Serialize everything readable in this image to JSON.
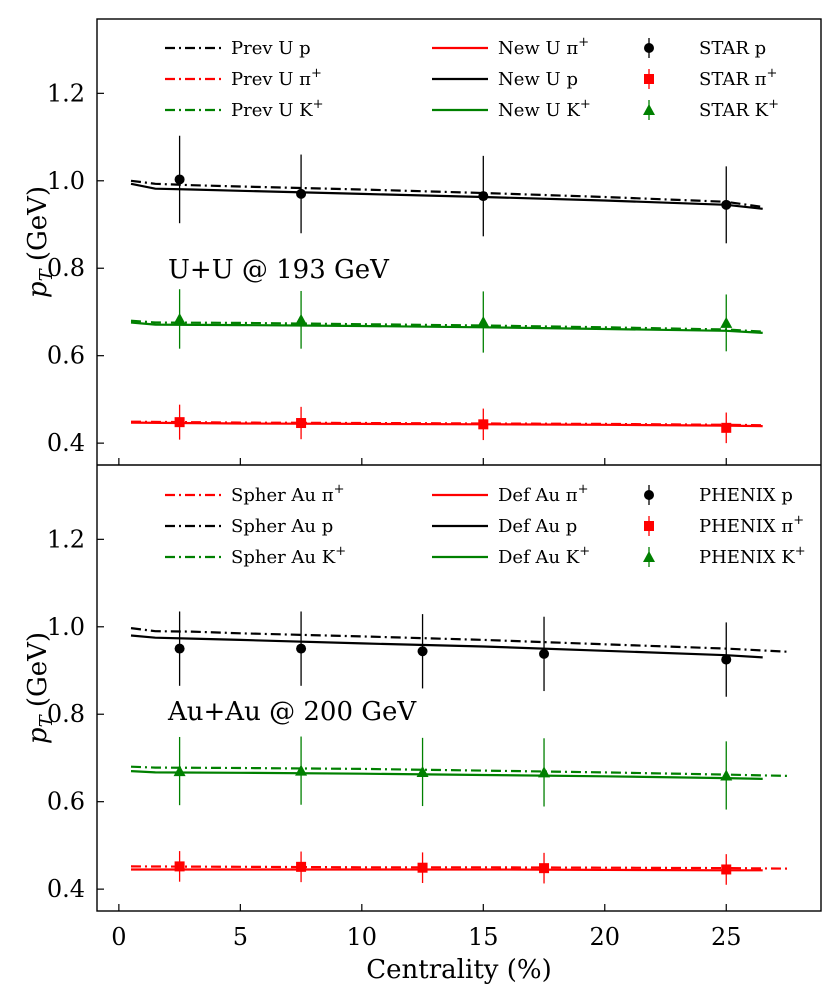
{
  "chart_data": [
    {
      "type": "line",
      "panel": "top",
      "title": "",
      "xlabel": "",
      "ylabel": "p_T (GeV)",
      "ylabel_main": "p",
      "ylabel_sub": "T",
      "ylabel_rest": " (GeV)",
      "annotation": "U+U @ 193 GeV",
      "xlim": [
        -0.9,
        28.9
      ],
      "ylim": [
        0.35,
        1.37
      ],
      "yticks": [
        "0.4",
        "0.6",
        "0.8",
        "1.0",
        "1.2"
      ],
      "ytick_values": [
        0.4,
        0.6,
        0.8,
        1.0,
        1.2
      ],
      "legend_position": "top",
      "series": [
        {
          "name": "Prev U p",
          "base": "Prev U ",
          "sup": "",
          "label_tail": "p",
          "style": "dashdot",
          "color": "#000000",
          "x": [
            0.5,
            1.5,
            3,
            5,
            10,
            15,
            20,
            25,
            26.5
          ],
          "y": [
            1.0,
            0.993,
            0.99,
            0.987,
            0.98,
            0.972,
            0.963,
            0.952,
            0.94
          ]
        },
        {
          "name": "Prev U π+",
          "base": "Prev U π",
          "sup": "+",
          "label_tail": "",
          "style": "dashdot",
          "color": "#ff0000",
          "x": [
            0.5,
            5,
            10,
            15,
            20,
            25,
            26.5
          ],
          "y": [
            0.449,
            0.447,
            0.446,
            0.445,
            0.444,
            0.442,
            0.441
          ]
        },
        {
          "name": "Prev U K+",
          "base": "Prev U K",
          "sup": "+",
          "label_tail": "",
          "style": "dashdot",
          "color": "#008000",
          "x": [
            0.5,
            1.5,
            5,
            10,
            15,
            20,
            25,
            26.5
          ],
          "y": [
            0.68,
            0.676,
            0.675,
            0.672,
            0.669,
            0.665,
            0.66,
            0.655
          ]
        },
        {
          "name": "New U π+",
          "base": "New U π",
          "sup": "+",
          "label_tail": "",
          "style": "solid",
          "color": "#ff0000",
          "x": [
            0.5,
            5,
            10,
            15,
            20,
            25,
            26.5
          ],
          "y": [
            0.447,
            0.445,
            0.444,
            0.443,
            0.442,
            0.44,
            0.439
          ]
        },
        {
          "name": "New U p",
          "base": "New U ",
          "sup": "",
          "label_tail": "p",
          "style": "solid",
          "color": "#000000",
          "x": [
            0.5,
            1.5,
            3,
            5,
            10,
            15,
            20,
            25,
            26.5
          ],
          "y": [
            0.993,
            0.982,
            0.98,
            0.977,
            0.97,
            0.963,
            0.955,
            0.945,
            0.936
          ]
        },
        {
          "name": "New U K+",
          "base": "New U K",
          "sup": "+",
          "label_tail": "",
          "style": "solid",
          "color": "#008000",
          "x": [
            0.5,
            1.5,
            5,
            10,
            15,
            20,
            25,
            26.5
          ],
          "y": [
            0.676,
            0.671,
            0.67,
            0.668,
            0.665,
            0.661,
            0.657,
            0.652
          ]
        },
        {
          "name": "STAR p",
          "base": "STAR ",
          "sup": "",
          "label_tail": "p",
          "style": "marker",
          "marker": "circle",
          "color": "#000000",
          "x": [
            2.5,
            7.5,
            15,
            25
          ],
          "y": [
            1.003,
            0.97,
            0.965,
            0.945
          ],
          "yerr": [
            0.1,
            0.09,
            0.092,
            0.088
          ]
        },
        {
          "name": "STAR π+",
          "base": "STAR π",
          "sup": "+",
          "label_tail": "",
          "style": "marker",
          "marker": "square",
          "color": "#ff0000",
          "x": [
            2.5,
            7.5,
            15,
            25
          ],
          "y": [
            0.448,
            0.446,
            0.443,
            0.435
          ],
          "yerr": [
            0.04,
            0.037,
            0.036,
            0.035
          ]
        },
        {
          "name": "STAR K+",
          "base": "STAR K",
          "sup": "+",
          "label_tail": "",
          "style": "marker",
          "marker": "triangle",
          "color": "#008000",
          "x": [
            2.5,
            7.5,
            15,
            25
          ],
          "y": [
            0.684,
            0.682,
            0.677,
            0.675
          ],
          "yerr": [
            0.068,
            0.066,
            0.07,
            0.065
          ]
        }
      ]
    },
    {
      "type": "line",
      "panel": "bottom",
      "title": "",
      "xlabel": "Centrality (%)",
      "ylabel": "p_T (GeV)",
      "ylabel_main": "p",
      "ylabel_sub": "T",
      "ylabel_rest": " (GeV)",
      "annotation": "Au+Au @ 200 GeV",
      "xlim": [
        -0.9,
        28.9
      ],
      "ylim": [
        0.35,
        1.37
      ],
      "xticks": [
        "0",
        "5",
        "10",
        "15",
        "20",
        "25"
      ],
      "xtick_values": [
        0,
        5,
        10,
        15,
        20,
        25
      ],
      "yticks": [
        "0.4",
        "0.6",
        "0.8",
        "1.0",
        "1.2"
      ],
      "ytick_values": [
        0.4,
        0.6,
        0.8,
        1.0,
        1.2
      ],
      "legend_position": "top",
      "series": [
        {
          "name": "Spher Au π+",
          "base": "Spher Au π",
          "sup": "+",
          "label_tail": "",
          "style": "dashdot",
          "color": "#ff0000",
          "x": [
            0.5,
            5,
            10,
            15,
            20,
            25,
            27.5
          ],
          "y": [
            0.452,
            0.451,
            0.45,
            0.45,
            0.449,
            0.448,
            0.447
          ]
        },
        {
          "name": "Spher Au p",
          "base": "Spher Au ",
          "sup": "",
          "label_tail": "p",
          "style": "dashdot",
          "color": "#000000",
          "x": [
            0.5,
            1.5,
            3,
            5,
            10,
            15,
            20,
            25,
            27.5
          ],
          "y": [
            0.997,
            0.99,
            0.989,
            0.985,
            0.978,
            0.97,
            0.96,
            0.95,
            0.943
          ]
        },
        {
          "name": "Spher Au K+",
          "base": "Spher Au K",
          "sup": "+",
          "label_tail": "",
          "style": "dashdot",
          "color": "#008000",
          "x": [
            0.5,
            1.5,
            5,
            10,
            15,
            20,
            25,
            27.5
          ],
          "y": [
            0.68,
            0.678,
            0.677,
            0.675,
            0.671,
            0.667,
            0.662,
            0.659
          ]
        },
        {
          "name": "Def Au π+",
          "base": "Def Au π",
          "sup": "+",
          "label_tail": "",
          "style": "solid",
          "color": "#ff0000",
          "x": [
            0.5,
            5,
            10,
            15,
            20,
            25,
            26.5
          ],
          "y": [
            0.445,
            0.445,
            0.445,
            0.445,
            0.444,
            0.443,
            0.443
          ]
        },
        {
          "name": "Def Au p",
          "base": "Def Au ",
          "sup": "",
          "label_tail": "p",
          "style": "solid",
          "color": "#000000",
          "x": [
            0.5,
            1.5,
            3,
            5,
            10,
            15,
            20,
            25,
            26.5
          ],
          "y": [
            0.98,
            0.975,
            0.973,
            0.97,
            0.962,
            0.955,
            0.945,
            0.935,
            0.93
          ]
        },
        {
          "name": "Def Au K+",
          "base": "Def Au K",
          "sup": "+",
          "label_tail": "",
          "style": "solid",
          "color": "#008000",
          "x": [
            0.5,
            1.5,
            5,
            10,
            15,
            20,
            25,
            26.5
          ],
          "y": [
            0.67,
            0.667,
            0.666,
            0.664,
            0.661,
            0.658,
            0.654,
            0.652
          ]
        },
        {
          "name": "PHENIX p",
          "base": "PHENIX ",
          "sup": "",
          "label_tail": "p",
          "style": "marker",
          "marker": "circle",
          "color": "#000000",
          "x": [
            2.5,
            7.5,
            12.5,
            17.5,
            25
          ],
          "y": [
            0.95,
            0.95,
            0.944,
            0.938,
            0.925
          ],
          "yerr": [
            0.085,
            0.085,
            0.085,
            0.085,
            0.085
          ]
        },
        {
          "name": "PHENIX π+",
          "base": "PHENIX π",
          "sup": "+",
          "label_tail": "",
          "style": "marker",
          "marker": "square",
          "color": "#ff0000",
          "x": [
            2.5,
            7.5,
            12.5,
            17.5,
            25
          ],
          "y": [
            0.452,
            0.451,
            0.449,
            0.448,
            0.445
          ],
          "yerr": [
            0.035,
            0.035,
            0.035,
            0.035,
            0.035
          ]
        },
        {
          "name": "PHENIX K+",
          "base": "PHENIX K",
          "sup": "+",
          "label_tail": "",
          "style": "marker",
          "marker": "triangle",
          "color": "#008000",
          "x": [
            2.5,
            7.5,
            12.5,
            17.5,
            25
          ],
          "y": [
            0.67,
            0.671,
            0.668,
            0.667,
            0.66
          ],
          "yerr": [
            0.078,
            0.078,
            0.078,
            0.078,
            0.078
          ]
        }
      ]
    }
  ]
}
